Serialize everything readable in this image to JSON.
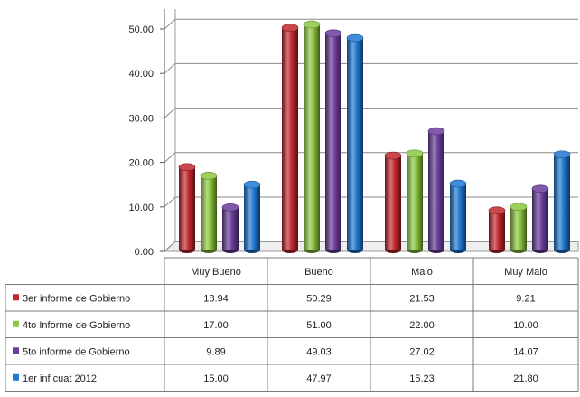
{
  "chart_data": {
    "type": "bar",
    "title": "",
    "xlabel": "",
    "ylabel": "",
    "ylim": [
      0,
      50
    ],
    "yticks": [
      "0.00",
      "10.00",
      "20.00",
      "30.00",
      "40.00",
      "50.00"
    ],
    "grid": true,
    "legend_placement": "left, in data table rows",
    "categories": [
      "Muy Bueno",
      "Bueno",
      "Malo",
      "Muy Malo"
    ],
    "series": [
      {
        "name": "3er informe de Gobierno",
        "color": "#c0262d",
        "values": [
          18.94,
          50.29,
          21.53,
          9.21
        ],
        "labels": [
          "18.94",
          "50.29",
          "21.53",
          "9.21"
        ]
      },
      {
        "name": "4to Informe de Gobierno",
        "color": "#8cc63f",
        "values": [
          17.0,
          51.0,
          22.0,
          10.0
        ],
        "labels": [
          "17.00",
          "51.00",
          "22.00",
          "10.00"
        ]
      },
      {
        "name": "5to informe de Gobierno",
        "color": "#6a3d9a",
        "values": [
          9.89,
          49.03,
          27.02,
          14.07
        ],
        "labels": [
          "9.89",
          "49.03",
          "27.02",
          "14.07"
        ]
      },
      {
        "name": "1er inf cuat 2012",
        "color": "#1f78d1",
        "values": [
          15.0,
          47.97,
          15.23,
          21.8
        ],
        "labels": [
          "15.00",
          "47.97",
          "15.23",
          "21.80"
        ]
      }
    ]
  }
}
